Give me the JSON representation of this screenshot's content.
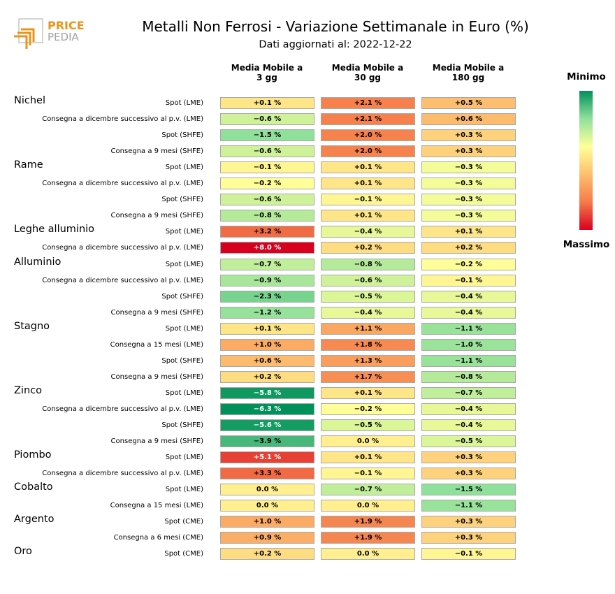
{
  "logo": {
    "line1": "PRICE",
    "line2": "PEDIA"
  },
  "chart_data": {
    "type": "table",
    "title": "Metalli Non Ferrosi - Variazione Settimanale in Euro (%)",
    "subtitle": "Dati aggiornati al: 2022-12-22",
    "columns": [
      "Media Mobile a\n3 gg",
      "Media Mobile a\n30 gg",
      "Media Mobile a\n180 gg"
    ],
    "colorbar": {
      "min_label": "Minimo",
      "max_label": "Massimo",
      "colors": [
        "#00915a",
        "#90e09a",
        "#ffff99",
        "#fdbf6f",
        "#f57b4a",
        "#d7001e"
      ]
    },
    "value_format": "%",
    "groups": [
      {
        "name": "Nichel",
        "rows": [
          {
            "label": "Spot (LME)",
            "values": [
              0.1,
              2.1,
              0.5
            ]
          },
          {
            "label": "Consegna a dicembre successivo al p.v. (LME)",
            "values": [
              -0.6,
              2.1,
              0.6
            ]
          },
          {
            "label": "Spot (SHFE)",
            "values": [
              -1.5,
              2.0,
              0.3
            ]
          },
          {
            "label": "Consegna a 9 mesi (SHFE)",
            "values": [
              -0.6,
              2.0,
              0.3
            ]
          }
        ]
      },
      {
        "name": "Rame",
        "rows": [
          {
            "label": "Spot (LME)",
            "values": [
              -0.1,
              0.1,
              -0.3
            ]
          },
          {
            "label": "Consegna a dicembre successivo al p.v. (LME)",
            "values": [
              -0.2,
              0.1,
              -0.3
            ]
          },
          {
            "label": "Spot (SHFE)",
            "values": [
              -0.6,
              -0.1,
              -0.3
            ]
          },
          {
            "label": "Consegna a 9 mesi (SHFE)",
            "values": [
              -0.8,
              0.1,
              -0.3
            ]
          }
        ]
      },
      {
        "name": "Leghe alluminio",
        "rows": [
          {
            "label": "Spot (LME)",
            "values": [
              3.2,
              -0.4,
              0.1
            ]
          },
          {
            "label": "Consegna a dicembre successivo al p.v. (LME)",
            "values": [
              8.0,
              0.2,
              0.2
            ]
          }
        ]
      },
      {
        "name": "Alluminio",
        "rows": [
          {
            "label": "Spot (LME)",
            "values": [
              -0.7,
              -0.8,
              -0.2
            ]
          },
          {
            "label": "Consegna a dicembre successivo al p.v. (LME)",
            "values": [
              -0.9,
              -0.6,
              -0.1
            ]
          },
          {
            "label": "Spot (SHFE)",
            "values": [
              -2.3,
              -0.5,
              -0.4
            ]
          },
          {
            "label": "Consegna a 9 mesi (SHFE)",
            "values": [
              -1.2,
              -0.4,
              -0.4
            ]
          }
        ]
      },
      {
        "name": "Stagno",
        "rows": [
          {
            "label": "Spot (LME)",
            "values": [
              0.1,
              1.1,
              -1.1
            ]
          },
          {
            "label": "Consegna a 15 mesi (LME)",
            "values": [
              1.0,
              1.8,
              -1.0
            ]
          },
          {
            "label": "Spot (SHFE)",
            "values": [
              0.6,
              1.3,
              -1.1
            ]
          },
          {
            "label": "Consegna a 9 mesi (SHFE)",
            "values": [
              0.2,
              1.7,
              -0.8
            ]
          }
        ]
      },
      {
        "name": "Zinco",
        "rows": [
          {
            "label": "Spot (LME)",
            "values": [
              -5.8,
              0.1,
              -0.7
            ]
          },
          {
            "label": "Consegna a dicembre successivo al p.v. (LME)",
            "values": [
              -6.3,
              -0.2,
              -0.4
            ]
          },
          {
            "label": "Spot (SHFE)",
            "values": [
              -5.6,
              -0.5,
              -0.4
            ]
          },
          {
            "label": "Consegna a 9 mesi (SHFE)",
            "values": [
              -3.9,
              0.0,
              -0.5
            ]
          }
        ]
      },
      {
        "name": "Piombo",
        "rows": [
          {
            "label": "Spot (LME)",
            "values": [
              5.1,
              0.1,
              0.3
            ]
          },
          {
            "label": "Consegna a dicembre successivo al p.v. (LME)",
            "values": [
              3.3,
              -0.1,
              0.3
            ]
          }
        ]
      },
      {
        "name": "Cobalto",
        "rows": [
          {
            "label": "Spot (LME)",
            "values": [
              0.0,
              -0.7,
              -1.5
            ]
          },
          {
            "label": "Consegna a 15 mesi (LME)",
            "values": [
              0.0,
              0.0,
              -1.1
            ]
          }
        ]
      },
      {
        "name": "Argento",
        "rows": [
          {
            "label": "Spot (CME)",
            "values": [
              1.0,
              1.9,
              0.3
            ]
          },
          {
            "label": "Consegna a 6 mesi (CME)",
            "values": [
              0.9,
              1.9,
              0.3
            ]
          }
        ]
      },
      {
        "name": "Oro",
        "rows": [
          {
            "label": "Spot (CME)",
            "values": [
              0.2,
              0.0,
              -0.1
            ]
          }
        ]
      }
    ]
  }
}
